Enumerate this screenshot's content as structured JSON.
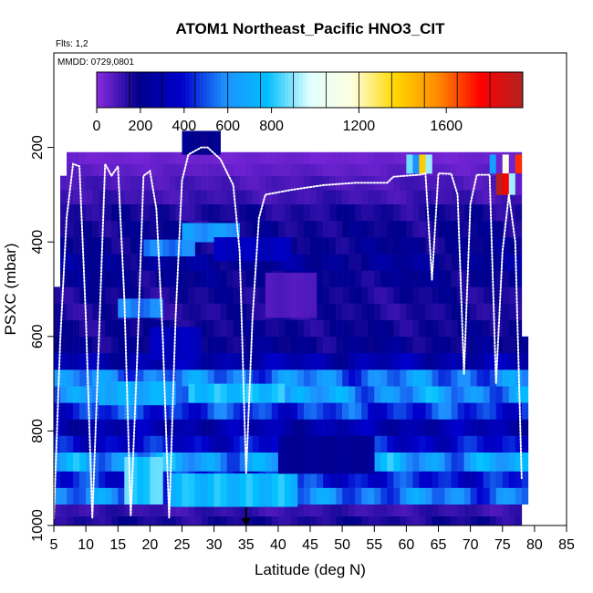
{
  "chart_data": {
    "type": "heatmap",
    "title": "ATOM1 Northeast_Pacific HNO3_CIT",
    "annotations": [
      "Flts: 1,2",
      "MMDD: 0729,0801"
    ],
    "xlabel": "Latitude (deg N)",
    "ylabel": "PSXC (mbar)",
    "xlim": [
      5,
      85
    ],
    "ylim": [
      1000,
      0
    ],
    "xticks": [
      "5",
      "10",
      "15",
      "20",
      "25",
      "30",
      "35",
      "40",
      "45",
      "50",
      "55",
      "60",
      "65",
      "70",
      "75",
      "80",
      "85"
    ],
    "yticks": [
      "200",
      "400",
      "600",
      "800",
      "1000"
    ],
    "colorbar": {
      "range": [
        0,
        1950
      ],
      "tick_values": [
        0,
        200,
        400,
        600,
        800,
        1200,
        1600
      ],
      "tick_labels": [
        "0",
        "200",
        "400",
        "600",
        "800",
        "1200",
        "1600"
      ],
      "colors": [
        "#8a2be2",
        "#00008b",
        "#0000cd",
        "#1e90ff",
        "#00bfff",
        "#e0ffff",
        "#ffffe0",
        "#ffd700",
        "#ff8c00",
        "#ff0000",
        "#b22222"
      ]
    },
    "marker": {
      "label": "down-arrow",
      "latitude": 35
    },
    "layers": [
      {
        "p_top": 980,
        "p_bot": 1000,
        "lat_min": 5,
        "lat_max": 78,
        "value": 160
      },
      {
        "p_top": 955,
        "p_bot": 980,
        "lat_min": 5,
        "lat_max": 78,
        "value": 120
      },
      {
        "p_top": 920,
        "p_bot": 955,
        "lat_min": 5,
        "lat_max": 79,
        "value": 560
      },
      {
        "p_top": 885,
        "p_bot": 920,
        "lat_min": 5,
        "lat_max": 79,
        "value": 420
      },
      {
        "p_top": 845,
        "p_bot": 885,
        "lat_min": 5,
        "lat_max": 79,
        "value": 640
      },
      {
        "p_top": 810,
        "p_bot": 845,
        "lat_min": 5,
        "lat_max": 79,
        "value": 380
      },
      {
        "p_top": 775,
        "p_bot": 810,
        "lat_min": 5,
        "lat_max": 79,
        "value": 300
      },
      {
        "p_top": 740,
        "p_bot": 775,
        "lat_min": 5,
        "lat_max": 79,
        "value": 460
      },
      {
        "p_top": 705,
        "p_bot": 740,
        "lat_min": 5,
        "lat_max": 79,
        "value": 620
      },
      {
        "p_top": 670,
        "p_bot": 705,
        "lat_min": 5,
        "lat_max": 79,
        "value": 560
      },
      {
        "p_top": 635,
        "p_bot": 670,
        "lat_min": 5,
        "lat_max": 79,
        "value": 300
      },
      {
        "p_top": 600,
        "p_bot": 635,
        "lat_min": 5,
        "lat_max": 79,
        "value": 200
      },
      {
        "p_top": 565,
        "p_bot": 600,
        "lat_min": 5,
        "lat_max": 78,
        "value": 180
      },
      {
        "p_top": 530,
        "p_bot": 565,
        "lat_min": 5,
        "lat_max": 78,
        "value": 160
      },
      {
        "p_top": 495,
        "p_bot": 530,
        "lat_min": 5,
        "lat_max": 78,
        "value": 170
      },
      {
        "p_top": 460,
        "p_bot": 495,
        "lat_min": 6,
        "lat_max": 78,
        "value": 200
      },
      {
        "p_top": 425,
        "p_bot": 460,
        "lat_min": 6,
        "lat_max": 78,
        "value": 230
      },
      {
        "p_top": 390,
        "p_bot": 425,
        "lat_min": 6,
        "lat_max": 78,
        "value": 200
      },
      {
        "p_top": 355,
        "p_bot": 390,
        "lat_min": 6,
        "lat_max": 78,
        "value": 180
      },
      {
        "p_top": 320,
        "p_bot": 355,
        "lat_min": 6,
        "lat_max": 78,
        "value": 160
      },
      {
        "p_top": 290,
        "p_bot": 320,
        "lat_min": 6,
        "lat_max": 78,
        "value": 110
      },
      {
        "p_top": 260,
        "p_bot": 290,
        "lat_min": 6,
        "lat_max": 78,
        "value": 90
      },
      {
        "p_top": 235,
        "p_bot": 260,
        "lat_min": 7,
        "lat_max": 78,
        "value": 60
      },
      {
        "p_top": 210,
        "p_bot": 235,
        "lat_min": 7,
        "lat_max": 78,
        "value": 40
      }
    ],
    "patches": [
      {
        "lat_min": 16,
        "lat_max": 22,
        "p_top": 855,
        "p_bot": 955,
        "value": 820
      },
      {
        "lat_min": 23,
        "lat_max": 43,
        "p_top": 890,
        "p_bot": 960,
        "value": 760
      },
      {
        "lat_min": 26,
        "lat_max": 41,
        "p_top": 700,
        "p_bot": 740,
        "value": 770
      },
      {
        "lat_min": 12,
        "lat_max": 24,
        "p_top": 695,
        "p_bot": 745,
        "value": 700
      },
      {
        "lat_min": 15,
        "lat_max": 22,
        "p_top": 520,
        "p_bot": 560,
        "value": 560
      },
      {
        "lat_min": 20,
        "lat_max": 28,
        "p_top": 580,
        "p_bot": 650,
        "value": 340
      },
      {
        "lat_min": 25,
        "lat_max": 34,
        "p_top": 360,
        "p_bot": 400,
        "value": 620
      },
      {
        "lat_min": 19,
        "lat_max": 27,
        "p_top": 395,
        "p_bot": 430,
        "value": 560
      },
      {
        "lat_min": 30,
        "lat_max": 42,
        "p_top": 390,
        "p_bot": 440,
        "value": 340
      },
      {
        "lat_min": 38,
        "lat_max": 46,
        "p_top": 465,
        "p_bot": 560,
        "value": 80
      },
      {
        "lat_min": 40,
        "lat_max": 55,
        "p_top": 810,
        "p_bot": 890,
        "value": 220
      },
      {
        "lat_min": 25,
        "lat_max": 31,
        "p_top": 165,
        "p_bot": 215,
        "value": 200
      },
      {
        "lat_min": 60,
        "lat_max": 61,
        "p_top": 215,
        "p_bot": 255,
        "value": 840
      },
      {
        "lat_min": 61,
        "lat_max": 62,
        "p_top": 215,
        "p_bot": 255,
        "value": 620
      },
      {
        "lat_min": 62,
        "lat_max": 63,
        "p_top": 215,
        "p_bot": 255,
        "value": 1500
      },
      {
        "lat_min": 63,
        "lat_max": 64,
        "p_top": 215,
        "p_bot": 255,
        "value": 900
      },
      {
        "lat_min": 73,
        "lat_max": 74,
        "p_top": 215,
        "p_bot": 255,
        "value": 620
      },
      {
        "lat_min": 74,
        "lat_max": 75,
        "p_top": 215,
        "p_bot": 255,
        "value": 40
      },
      {
        "lat_min": 75,
        "lat_max": 76,
        "p_top": 215,
        "p_bot": 255,
        "value": 1150
      },
      {
        "lat_min": 76,
        "lat_max": 77,
        "p_top": 215,
        "p_bot": 255,
        "value": 40
      },
      {
        "lat_min": 77,
        "lat_max": 78,
        "p_top": 215,
        "p_bot": 255,
        "value": 1750
      },
      {
        "lat_min": 74,
        "lat_max": 76,
        "p_top": 255,
        "p_bot": 300,
        "value": 1800
      },
      {
        "lat_min": 76,
        "lat_max": 77,
        "p_top": 255,
        "p_bot": 300,
        "value": 1000
      },
      {
        "lat_min": 77,
        "lat_max": 78,
        "p_top": 255,
        "p_bot": 300,
        "value": 60
      }
    ],
    "flight_track": [
      {
        "lat": 5,
        "p": 985
      },
      {
        "lat": 6,
        "p": 610
      },
      {
        "lat": 7,
        "p": 350
      },
      {
        "lat": 8,
        "p": 235
      },
      {
        "lat": 9,
        "p": 240
      },
      {
        "lat": 10,
        "p": 560
      },
      {
        "lat": 11,
        "p": 985
      },
      {
        "lat": 12,
        "p": 620
      },
      {
        "lat": 13,
        "p": 235
      },
      {
        "lat": 14,
        "p": 260
      },
      {
        "lat": 15,
        "p": 240
      },
      {
        "lat": 16,
        "p": 520
      },
      {
        "lat": 17,
        "p": 980
      },
      {
        "lat": 18,
        "p": 650
      },
      {
        "lat": 19,
        "p": 260
      },
      {
        "lat": 20,
        "p": 250
      },
      {
        "lat": 21,
        "p": 330
      },
      {
        "lat": 22,
        "p": 600
      },
      {
        "lat": 23,
        "p": 985
      },
      {
        "lat": 24,
        "p": 560
      },
      {
        "lat": 25,
        "p": 270
      },
      {
        "lat": 26,
        "p": 215
      },
      {
        "lat": 28,
        "p": 200
      },
      {
        "lat": 29,
        "p": 200
      },
      {
        "lat": 31,
        "p": 225
      },
      {
        "lat": 33,
        "p": 280
      },
      {
        "lat": 34,
        "p": 420
      },
      {
        "lat": 35,
        "p": 890
      },
      {
        "lat": 36,
        "p": 560
      },
      {
        "lat": 37,
        "p": 350
      },
      {
        "lat": 38,
        "p": 300
      },
      {
        "lat": 42,
        "p": 290
      },
      {
        "lat": 47,
        "p": 280
      },
      {
        "lat": 52,
        "p": 275
      },
      {
        "lat": 57,
        "p": 275
      },
      {
        "lat": 58,
        "p": 262
      },
      {
        "lat": 62,
        "p": 258
      },
      {
        "lat": 63,
        "p": 255
      },
      {
        "lat": 64,
        "p": 480
      },
      {
        "lat": 65,
        "p": 255
      },
      {
        "lat": 67,
        "p": 256
      },
      {
        "lat": 68,
        "p": 300
      },
      {
        "lat": 69,
        "p": 680
      },
      {
        "lat": 70,
        "p": 320
      },
      {
        "lat": 71,
        "p": 258
      },
      {
        "lat": 73,
        "p": 258
      },
      {
        "lat": 74,
        "p": 700
      },
      {
        "lat": 75,
        "p": 420
      },
      {
        "lat": 76,
        "p": 300
      },
      {
        "lat": 77,
        "p": 400
      },
      {
        "lat": 78,
        "p": 900
      }
    ]
  }
}
